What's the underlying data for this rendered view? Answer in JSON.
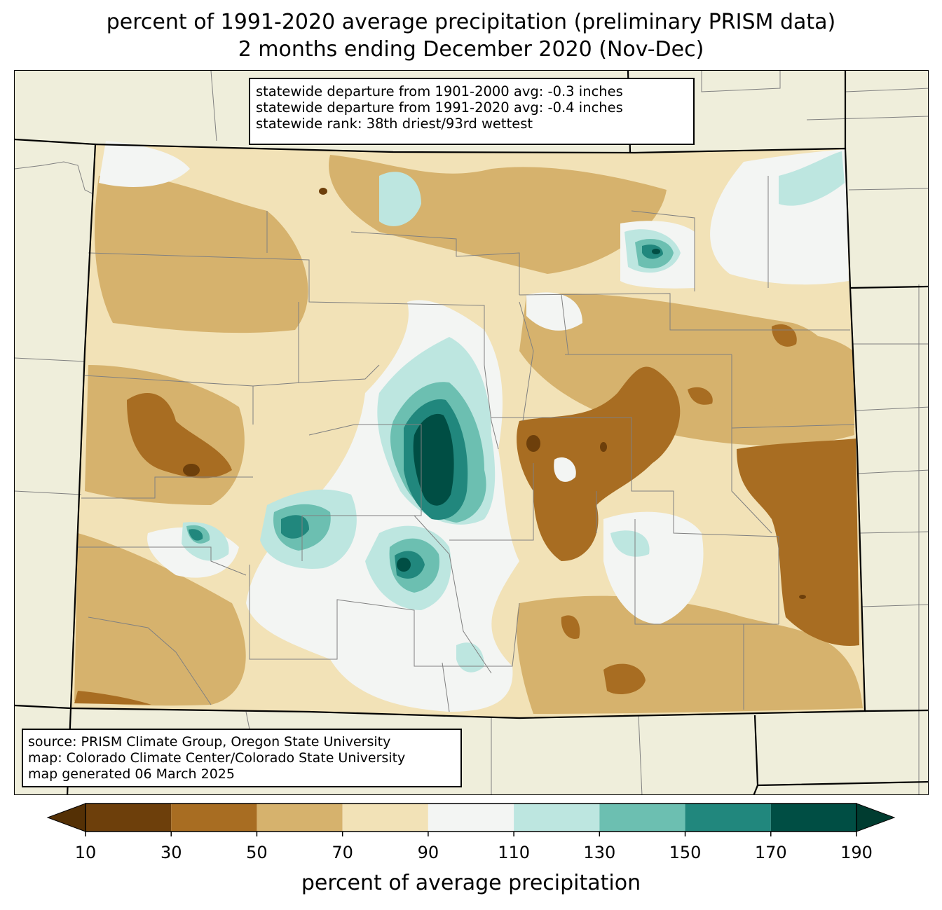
{
  "title": {
    "line1": "percent of 1991-2020 average precipitation (preliminary PRISM data)",
    "line2": "2 months ending December 2020 (Nov-Dec)"
  },
  "stats": {
    "line1": "statewide departure from 1901-2000 avg: -0.3 inches",
    "line2": "statewide departure from 1991-2020 avg: -0.4 inches",
    "line3": "statewide rank: 38th driest/93rd wettest"
  },
  "source": {
    "line1": "source: PRISM Climate Group, Oregon State University",
    "line2": "map: Colorado Climate Center/Colorado State University",
    "line3": "map generated 06 March 2025"
  },
  "colorbar": {
    "label": "percent of average precipitation",
    "ticks": [
      "10",
      "30",
      "50",
      "70",
      "90",
      "110",
      "130",
      "150",
      "170",
      "190"
    ],
    "under_color": "#543005",
    "over_color": "#003c30",
    "bins": [
      {
        "range": "10-30",
        "color": "#6d3f0b"
      },
      {
        "range": "30-50",
        "color": "#a86d22"
      },
      {
        "range": "50-70",
        "color": "#d6b26d"
      },
      {
        "range": "70-90",
        "color": "#f2e2b7"
      },
      {
        "range": "90-110",
        "color": "#f3f5f3"
      },
      {
        "range": "110-130",
        "color": "#bde6e0"
      },
      {
        "range": "130-150",
        "color": "#6cbfb1"
      },
      {
        "range": "150-170",
        "color": "#21877d"
      },
      {
        "range": "170-190",
        "color": "#004e44"
      }
    ]
  },
  "colors": {
    "background": "#efeedb",
    "state_border": "#000000",
    "county_border": "#808080"
  }
}
